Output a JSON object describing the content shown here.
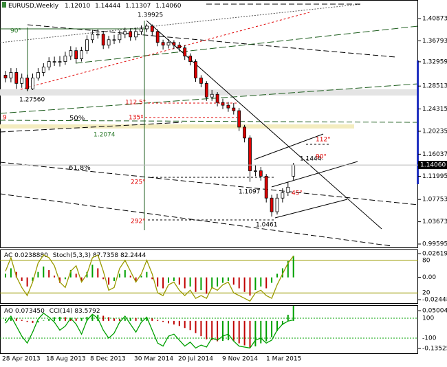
{
  "chart_data": [
    {
      "type": "candlestick",
      "title": "EURUSD,Weekly",
      "ohlc_labels": [
        "1.12010",
        "1.14444",
        "1.11307",
        "1.14060"
      ],
      "open": [
        1.305,
        1.3,
        1.31,
        1.29,
        1.3,
        1.28,
        1.3,
        1.31,
        1.32,
        1.33,
        1.33,
        1.33,
        1.34,
        1.35,
        1.335,
        1.35,
        1.37,
        1.38,
        1.38,
        1.36,
        1.37,
        1.37,
        1.38,
        1.385,
        1.375,
        1.385,
        1.39,
        1.395,
        1.385,
        1.365,
        1.36,
        1.365,
        1.36,
        1.355,
        1.34,
        1.33,
        1.3,
        1.29,
        1.265,
        1.27,
        1.255,
        1.25,
        1.245,
        1.24,
        1.21,
        1.19,
        1.13,
        1.13,
        1.12,
        1.08,
        1.055,
        1.08,
        1.09,
        1.1201
      ],
      "high": [
        1.313,
        1.318,
        1.318,
        1.308,
        1.306,
        1.308,
        1.318,
        1.327,
        1.338,
        1.339,
        1.34,
        1.348,
        1.358,
        1.356,
        1.357,
        1.378,
        1.388,
        1.389,
        1.386,
        1.377,
        1.379,
        1.387,
        1.392,
        1.391,
        1.392,
        1.396,
        1.39925,
        1.398,
        1.389,
        1.37,
        1.371,
        1.369,
        1.366,
        1.36,
        1.345,
        1.334,
        1.305,
        1.294,
        1.278,
        1.274,
        1.262,
        1.256,
        1.254,
        1.245,
        1.214,
        1.195,
        1.14,
        1.137,
        1.124,
        1.086,
        1.088,
        1.098,
        1.11,
        1.14444
      ],
      "low": [
        1.292,
        1.292,
        1.28,
        1.282,
        1.2756,
        1.278,
        1.295,
        1.303,
        1.314,
        1.322,
        1.321,
        1.324,
        1.333,
        1.327,
        1.33,
        1.344,
        1.364,
        1.372,
        1.353,
        1.354,
        1.362,
        1.364,
        1.373,
        1.368,
        1.369,
        1.379,
        1.384,
        1.378,
        1.358,
        1.352,
        1.354,
        1.353,
        1.348,
        1.333,
        1.323,
        1.293,
        1.283,
        1.258,
        1.258,
        1.248,
        1.243,
        1.238,
        1.233,
        1.203,
        1.182,
        1.1097,
        1.12,
        1.112,
        1.072,
        1.0461,
        1.05,
        1.072,
        1.084,
        1.11307
      ],
      "close": [
        1.3,
        1.31,
        1.29,
        1.3,
        1.28,
        1.3,
        1.31,
        1.32,
        1.33,
        1.33,
        1.33,
        1.34,
        1.35,
        1.335,
        1.35,
        1.37,
        1.38,
        1.38,
        1.36,
        1.37,
        1.37,
        1.38,
        1.385,
        1.375,
        1.385,
        1.39,
        1.395,
        1.385,
        1.365,
        1.36,
        1.365,
        1.36,
        1.355,
        1.34,
        1.33,
        1.3,
        1.29,
        1.265,
        1.27,
        1.255,
        1.25,
        1.245,
        1.24,
        1.21,
        1.19,
        1.13,
        1.13,
        1.12,
        1.08,
        1.055,
        1.08,
        1.09,
        1.1,
        1.1406
      ],
      "up_color": "#ffffff",
      "down_color": "#e00000",
      "ylim": [
        0.9897,
        1.4427
      ],
      "yticks": [
        1.40873,
        1.36793,
        1.32959,
        1.28513,
        1.24315,
        1.20235,
        1.16037,
        1.11995,
        1.07753,
        1.03673,
        0.99595
      ],
      "last_price": {
        "value": 1.1406,
        "label": "1.14060"
      },
      "x_labels": [
        "28 Apr 2013",
        "18 Aug 2013",
        "8 Dec 2013",
        "30 Mar 2014",
        "20 Jul 2014",
        "9 Nov 2014",
        "1 Mar 2015"
      ],
      "annotations": [
        "1.39925",
        "1.27560",
        "90°",
        "50%",
        "1.2074",
        "61.8%",
        "9",
        "112.5°",
        "135°",
        "225°",
        "292°",
        "1.1444",
        "1.1097",
        "1.0461",
        "112°",
        "90°",
        "45°"
      ]
    },
    {
      "type": "oscillator",
      "label": "AC 0.0238880",
      "line_label": "Stoch(5,3,3) 87.7358 82.2444",
      "histogram": [
        0.004,
        0.01,
        0.006,
        -0.004,
        -0.01,
        -0.004,
        0.006,
        0.012,
        0.008,
        0.002,
        -0.006,
        -0.002,
        0.008,
        0.004,
        -0.004,
        0.006,
        0.014,
        0.01,
        -0.002,
        -0.008,
        -0.004,
        0.004,
        0.008,
        0.002,
        -0.004,
        0.002,
        0.006,
        -0.002,
        -0.01,
        -0.012,
        -0.006,
        -0.004,
        -0.008,
        -0.012,
        -0.01,
        -0.016,
        -0.014,
        -0.018,
        -0.012,
        -0.01,
        -0.006,
        -0.004,
        -0.008,
        -0.012,
        -0.016,
        -0.02,
        -0.014,
        -0.01,
        -0.012,
        -0.006,
        0.004,
        0.01,
        0.018,
        0.023888
      ],
      "line": [
        60,
        85,
        50,
        30,
        15,
        40,
        75,
        90,
        85,
        70,
        40,
        30,
        60,
        70,
        40,
        55,
        85,
        90,
        60,
        25,
        30,
        65,
        80,
        60,
        40,
        55,
        80,
        55,
        20,
        15,
        35,
        40,
        25,
        15,
        25,
        10,
        15,
        10,
        30,
        25,
        35,
        40,
        20,
        15,
        10,
        5,
        20,
        25,
        15,
        10,
        35,
        55,
        75,
        87.7358
      ],
      "line_color": "#9a9a00",
      "ylim": [
        -0.02903,
        0.03073
      ],
      "yticks": [
        0.026192,
        {
          "value": 0,
          "label": "0.00"
        },
        -0.024485
      ],
      "y2lim": [
        0,
        100
      ],
      "y2ticks": [
        80,
        20
      ]
    },
    {
      "type": "oscillator",
      "label": "AO 0.073450",
      "line_label": "CCI(14) 83.5792",
      "histogram": [
        0.01,
        0.015,
        0.012,
        0.005,
        -0.005,
        -0.01,
        -0.008,
        0.002,
        0.01,
        0.018,
        0.02,
        0.018,
        0.015,
        0.012,
        0.014,
        0.02,
        0.028,
        0.03,
        0.025,
        0.018,
        0.012,
        0.01,
        0.012,
        0.015,
        0.014,
        0.015,
        0.018,
        0.012,
        0.005,
        -0.005,
        -0.012,
        -0.018,
        -0.025,
        -0.035,
        -0.045,
        -0.06,
        -0.075,
        -0.09,
        -0.095,
        -0.1,
        -0.098,
        -0.095,
        -0.1,
        -0.11,
        -0.12,
        -0.13,
        -0.125,
        -0.11,
        -0.1,
        -0.08,
        -0.05,
        -0.02,
        0.03,
        0.07345
      ],
      "line": [
        50,
        120,
        20,
        -80,
        -150,
        -40,
        90,
        150,
        110,
        60,
        -20,
        20,
        100,
        40,
        -60,
        80,
        140,
        100,
        -20,
        -100,
        -50,
        60,
        120,
        40,
        -40,
        60,
        110,
        -20,
        -150,
        -180,
        -80,
        -60,
        -120,
        -180,
        -140,
        -200,
        -170,
        -190,
        -100,
        -120,
        -80,
        -60,
        -130,
        -180,
        -190,
        -200,
        -120,
        -100,
        -150,
        -120,
        -20,
        40,
        70,
        83.5792
      ],
      "line_color": "#00a000",
      "ylim": [
        -0.162,
        0.0736
      ],
      "yticks": [
        0.050045,
        -0.135252
      ],
      "y2lim": [
        -259,
        224
      ],
      "y2ticks": [
        100,
        -100
      ]
    }
  ]
}
